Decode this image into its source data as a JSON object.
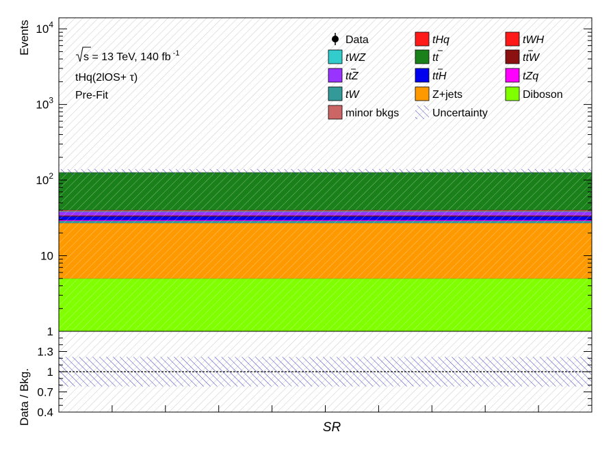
{
  "chart_data": {
    "type": "bar",
    "main": {
      "ylabel": "Events",
      "yscale": "log",
      "ylim": [
        1,
        14000
      ],
      "yticks": [
        {
          "value": 1,
          "label": "1"
        },
        {
          "value": 10,
          "label": "10"
        },
        {
          "value": 100,
          "base": "10",
          "exp": "2"
        },
        {
          "value": 1000,
          "base": "10",
          "exp": "3"
        },
        {
          "value": 10000,
          "base": "10",
          "exp": "4"
        }
      ],
      "categories": [
        "SR"
      ],
      "stack": [
        {
          "name": "Diboson",
          "color": "#80ff00",
          "value": 4.0
        },
        {
          "name": "Z+jets",
          "color": "#ff9900",
          "value": 22.0
        },
        {
          "name": "tW",
          "color": "#339999",
          "value": 1.8
        },
        {
          "name": "tZq",
          "color": "#ff00ff",
          "value": 0.8
        },
        {
          "name": "ttH",
          "color": "#0000ee",
          "value": 3.5
        },
        {
          "name": "ttW",
          "color": "#8b1010",
          "value": 0.9
        },
        {
          "name": "ttZ",
          "color": "#9933ff",
          "value": 4.0
        },
        {
          "name": "tWZ",
          "color": "#33cccc",
          "value": 0.6
        },
        {
          "name": "minor bkgs",
          "color": "#cc6666",
          "value": 1.2
        },
        {
          "name": "tHq",
          "color": "#ff1a1a",
          "value": 0.3
        },
        {
          "name": "tWH",
          "color": "#ff1a1a",
          "value": 0.1
        },
        {
          "name": "tt",
          "color": "#1a801a",
          "value": 86.0
        }
      ],
      "uncertainty_band": [
        117,
        140
      ]
    },
    "ratio": {
      "ylabel": "Data / Bkg.",
      "ylim": [
        0.4,
        1.6
      ],
      "yticks": [
        {
          "value": 0.4,
          "label": "0.4"
        },
        {
          "value": 0.7,
          "label": "0.7"
        },
        {
          "value": 1.0,
          "label": "1"
        },
        {
          "value": 1.3,
          "label": "1.3"
        }
      ],
      "reference_line": 1.0,
      "uncertainty_band": [
        0.78,
        1.22
      ]
    },
    "xlabel": "SR",
    "annotations": {
      "energy_prefix": "s",
      "energy_text": " = 13 TeV, 140 fb",
      "energy_sup": "-1",
      "channel": "tHq(2lOS+ τ)",
      "stage": "Pre-Fit"
    },
    "legend": {
      "placement": "top-right",
      "entries": [
        {
          "label": "Data",
          "style": "marker"
        },
        {
          "label": "tHq",
          "style": "fill",
          "color": "#ff1a1a",
          "italic": true
        },
        {
          "label": "tWH",
          "style": "fill",
          "color": "#ff1a1a",
          "italic": true
        },
        {
          "label": "tWZ",
          "style": "fill",
          "color": "#33cccc",
          "italic": true
        },
        {
          "label": "tt",
          "style": "fill",
          "color": "#1a801a",
          "italic": true,
          "bar": "tt"
        },
        {
          "label": "ttW",
          "style": "fill",
          "color": "#8b1010",
          "italic": true,
          "bar": "t"
        },
        {
          "label": "ttZ",
          "style": "fill",
          "color": "#9933ff",
          "italic": true,
          "bar": "t"
        },
        {
          "label": "ttH",
          "style": "fill",
          "color": "#0000ee",
          "italic": true,
          "bar": "t"
        },
        {
          "label": "tZq",
          "style": "fill",
          "color": "#ff00ff",
          "italic": true
        },
        {
          "label": "tW",
          "style": "fill",
          "color": "#339999",
          "italic": true
        },
        {
          "label": "Z+jets",
          "style": "fill",
          "color": "#ff9900"
        },
        {
          "label": "Diboson",
          "style": "fill",
          "color": "#80ff00"
        },
        {
          "label": "minor bkgs",
          "style": "fill",
          "color": "#cc6666"
        },
        {
          "label": "Uncertainty",
          "style": "hatch",
          "color": "#3a3acc"
        }
      ]
    }
  }
}
